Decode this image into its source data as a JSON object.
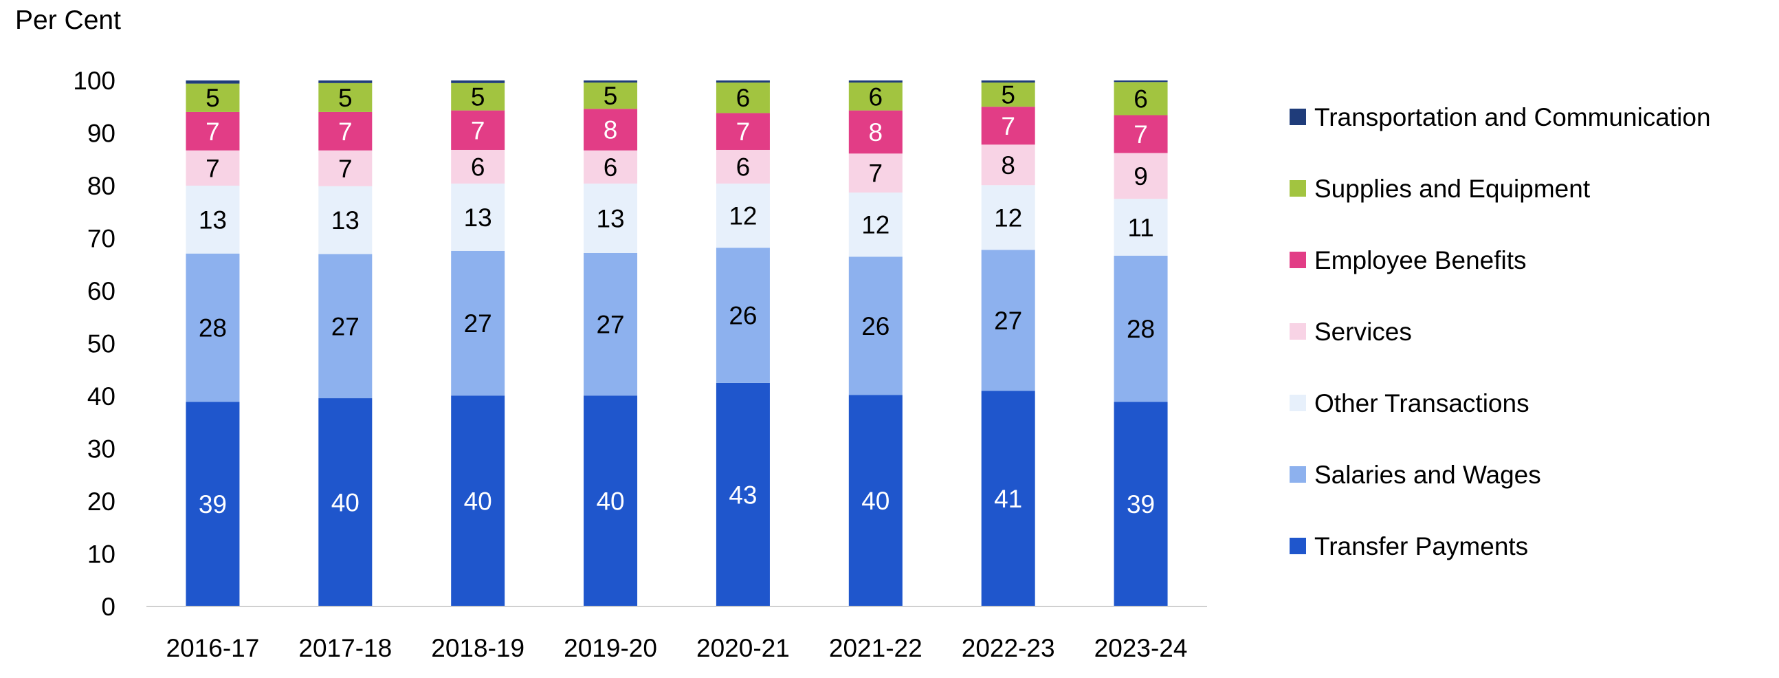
{
  "chart_data": {
    "type": "bar",
    "stacked": true,
    "ylabel": "Per Cent",
    "ylim": [
      0,
      100
    ],
    "yticks": [
      0,
      10,
      20,
      30,
      40,
      50,
      60,
      70,
      80,
      90,
      100
    ],
    "categories": [
      "2016-17",
      "2017-18",
      "2018-19",
      "2019-20",
      "2020-21",
      "2021-22",
      "2022-23",
      "2023-24"
    ],
    "series": [
      {
        "name": "Transfer Payments",
        "color": "#1f56cc",
        "label_color": "#ffffff",
        "values": [
          39,
          40,
          40,
          40,
          43,
          40,
          41,
          39
        ],
        "plot_values": [
          38.9,
          39.6,
          40.1,
          40.1,
          42.5,
          40.2,
          41.0,
          38.9
        ]
      },
      {
        "name": "Salaries and Wages",
        "color": "#8db1ee",
        "label_color": "#000000",
        "values": [
          28,
          27,
          27,
          27,
          26,
          26,
          27,
          28
        ],
        "plot_values": [
          28.2,
          27.4,
          27.5,
          27.1,
          25.7,
          26.3,
          26.8,
          27.8
        ]
      },
      {
        "name": "Other Transactions",
        "color": "#e7f0fb",
        "label_color": "#000000",
        "values": [
          13,
          13,
          13,
          13,
          12,
          12,
          12,
          11
        ],
        "plot_values": [
          12.9,
          12.9,
          12.8,
          13.2,
          12.2,
          12.2,
          12.3,
          10.8
        ]
      },
      {
        "name": "Services",
        "color": "#f8d3e5",
        "label_color": "#000000",
        "values": [
          7,
          7,
          6,
          6,
          6,
          7,
          8,
          9
        ],
        "plot_values": [
          6.7,
          6.8,
          6.4,
          6.3,
          6.4,
          7.4,
          7.7,
          8.7
        ]
      },
      {
        "name": "Employee Benefits",
        "color": "#e23d86",
        "label_color": "#ffffff",
        "values": [
          7,
          7,
          7,
          8,
          7,
          8,
          7,
          7
        ],
        "plot_values": [
          7.3,
          7.3,
          7.5,
          7.9,
          7.0,
          8.2,
          7.2,
          7.2
        ]
      },
      {
        "name": "Supplies and Equipment",
        "color": "#a2c440",
        "label_color": "#000000",
        "values": [
          5,
          5,
          5,
          5,
          6,
          6,
          5,
          6
        ],
        "plot_values": [
          5.4,
          5.5,
          5.2,
          5.0,
          5.8,
          5.3,
          4.6,
          6.3
        ]
      },
      {
        "name": "Transportation and Communication",
        "color": "#1f3c7a",
        "label_color": "#ffffff",
        "values": [
          0.6,
          0.5,
          0.5,
          0.4,
          0.4,
          0.4,
          0.4,
          0.3
        ],
        "plot_values": [
          0.6,
          0.5,
          0.5,
          0.4,
          0.4,
          0.4,
          0.4,
          0.3
        ],
        "show_labels": false
      }
    ],
    "legend": {
      "position": "right",
      "order": [
        "Transportation and Communication",
        "Supplies and Equipment",
        "Employee Benefits",
        "Services",
        "Other Transactions",
        "Salaries and Wages",
        "Transfer Payments"
      ]
    },
    "grid": false
  }
}
